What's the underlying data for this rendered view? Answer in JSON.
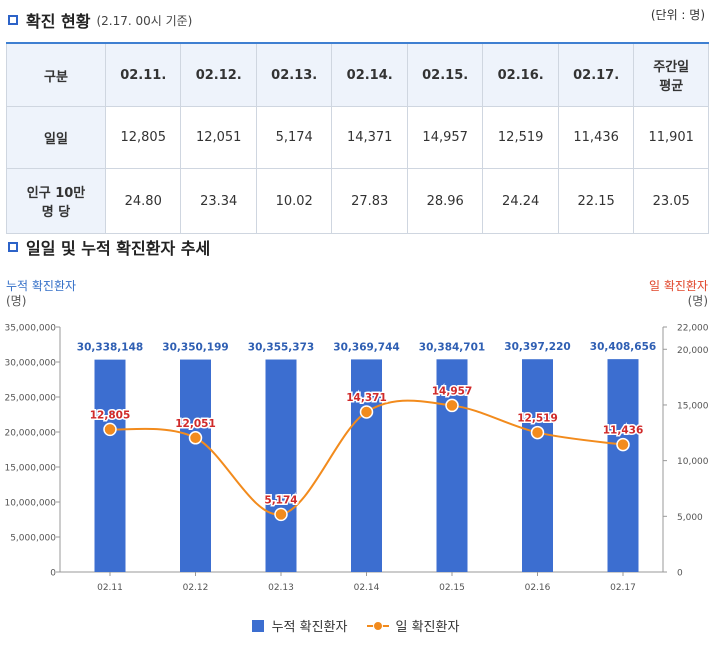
{
  "section1": {
    "title": "확진 현황",
    "subtitle": "(2.17. 00시 기준)",
    "unit": "(단위 : 명)"
  },
  "table": {
    "header": [
      "구분",
      "02.11.",
      "02.12.",
      "02.13.",
      "02.14.",
      "02.15.",
      "02.16.",
      "02.17.",
      "주간일\n평균"
    ],
    "rows": [
      {
        "label": "일일",
        "values": [
          "12,805",
          "12,051",
          "5,174",
          "14,371",
          "14,957",
          "12,519",
          "11,436",
          "11,901"
        ]
      },
      {
        "label": "인구 10만\n명 당",
        "values": [
          "24.80",
          "23.34",
          "10.02",
          "27.83",
          "28.96",
          "24.24",
          "22.15",
          "23.05"
        ]
      }
    ]
  },
  "section2": {
    "title": "일일 및 누적 확진환자 추세"
  },
  "chart_data": {
    "type": "bar",
    "categories": [
      "02.11",
      "02.12",
      "02.13",
      "02.14",
      "02.15",
      "02.16",
      "02.17"
    ],
    "series": [
      {
        "name": "누적 확진환자",
        "type": "bar",
        "axis": "left",
        "values": [
          30338148,
          30350199,
          30355373,
          30369744,
          30384701,
          30397220,
          30408656
        ],
        "labels": [
          "30,338,148",
          "30,350,199",
          "30,355,373",
          "30,369,744",
          "30,384,701",
          "30,397,220",
          "30,408,656"
        ]
      },
      {
        "name": "일 확진환자",
        "type": "line",
        "axis": "right",
        "values": [
          12805,
          12051,
          5174,
          14371,
          14957,
          12519,
          11436
        ],
        "labels": [
          "12,805",
          "12,051",
          "5,174",
          "14,371",
          "14,957",
          "12,519",
          "11,436"
        ]
      }
    ],
    "left_axis": {
      "title": "누적 확진환자",
      "unit": "(명)",
      "ylim": [
        0,
        35000000
      ],
      "ticks": [
        0,
        5000000,
        10000000,
        15000000,
        20000000,
        25000000,
        30000000,
        35000000
      ],
      "tick_labels": [
        "0",
        "5,000,000",
        "10,000,000",
        "15,000,000",
        "20,000,000",
        "25,000,000",
        "30,000,000",
        "35,000,000"
      ]
    },
    "right_axis": {
      "title": "일 확진환자",
      "unit": "(명)",
      "ylim": [
        0,
        22000
      ],
      "ticks": [
        0,
        5000,
        10000,
        15000,
        20000,
        22000
      ],
      "tick_labels": [
        "0",
        "5,000",
        "10,000",
        "15,000",
        "20,000",
        "22,000"
      ]
    },
    "grid": false,
    "legend": "bottom-center",
    "colors": {
      "bar": "#3c6ed0",
      "bar_label": "#2f5fb3",
      "line": "#f28b1d",
      "line_label": "#d02a2a",
      "left_axis_title": "#3570c8",
      "right_axis_title": "#e0452a"
    }
  }
}
